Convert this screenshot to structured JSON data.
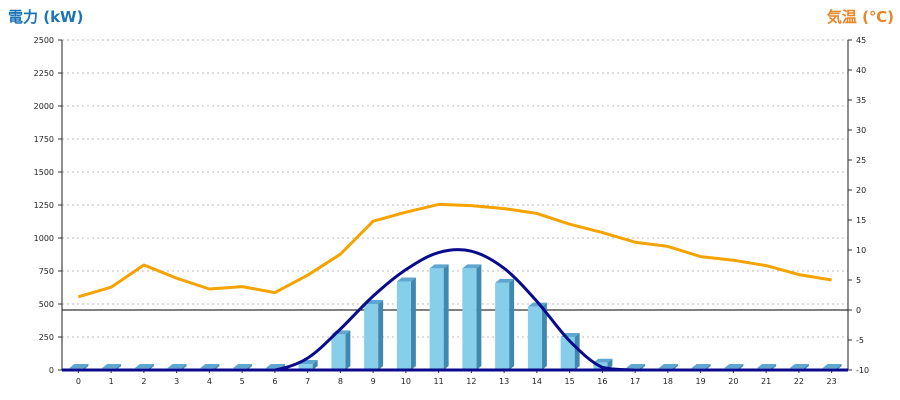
{
  "chart_data": {
    "type": "bar",
    "left_axis_title": "電力 (kW)",
    "right_axis_title": "気温 (℃)",
    "categories": [
      "0",
      "1",
      "2",
      "3",
      "4",
      "5",
      "6",
      "7",
      "8",
      "9",
      "10",
      "11",
      "12",
      "13",
      "14",
      "15",
      "16",
      "17",
      "18",
      "19",
      "20",
      "21",
      "22",
      "23"
    ],
    "y_left": {
      "min": 0,
      "max": 2500,
      "ticks": [
        0,
        250,
        500,
        750,
        1000,
        1250,
        1500,
        1750,
        2000,
        2250,
        2500
      ]
    },
    "y_right": {
      "min": -10,
      "max": 45,
      "ticks": [
        -10,
        -5,
        0,
        5,
        10,
        15,
        20,
        25,
        30,
        35,
        40,
        45
      ]
    },
    "grid": true,
    "series": [
      {
        "kind": "bar",
        "axis": "left",
        "color": "#87ceeb",
        "values": [
          15,
          15,
          15,
          15,
          15,
          15,
          15,
          45,
          270,
          500,
          670,
          770,
          770,
          660,
          480,
          250,
          55,
          15,
          15,
          15,
          15,
          15,
          15,
          15
        ]
      },
      {
        "kind": "smooth-line",
        "axis": "left",
        "color": "#0a0a8c",
        "values": [
          0,
          0,
          0,
          0,
          0,
          0,
          0,
          90,
          310,
          560,
          760,
          890,
          900,
          770,
          520,
          220,
          20,
          0,
          0,
          0,
          0,
          0,
          0,
          0
        ]
      },
      {
        "kind": "line",
        "axis": "right",
        "color": "#f5a300",
        "values": [
          2.2,
          3.8,
          7.5,
          5.3,
          3.5,
          3.9,
          2.9,
          5.8,
          9.3,
          14.8,
          16.3,
          17.6,
          17.4,
          16.9,
          16.1,
          14.3,
          12.9,
          11.3,
          10.6,
          8.9,
          8.3,
          7.4,
          5.9,
          5.0
        ]
      }
    ]
  }
}
